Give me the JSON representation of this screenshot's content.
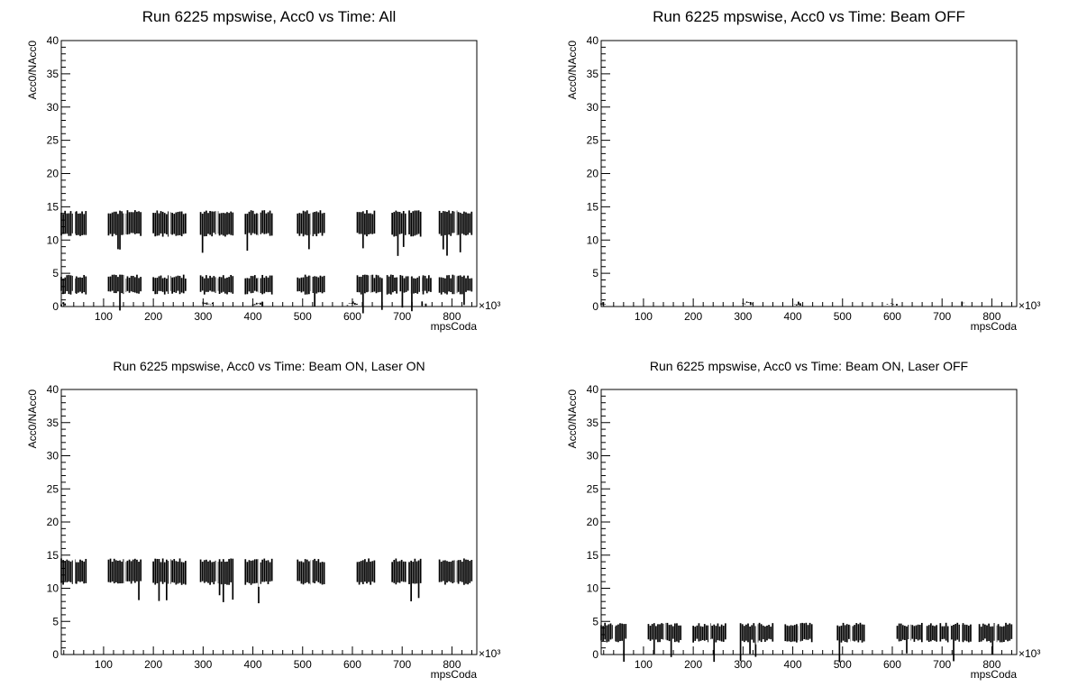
{
  "chart_data": [
    {
      "type": "scatter",
      "title": "Run 6225 mpswise, Acc0 vs Time: All",
      "xlabel": "mpsCoda",
      "ylabel": "Acc0/NAcc0",
      "x_multiplier": "×10³",
      "xlim": [
        15,
        850
      ],
      "ylim": [
        0,
        40
      ],
      "x_ticks": [
        "100",
        "200",
        "300",
        "400",
        "500",
        "600",
        "700",
        "800"
      ],
      "y_ticks": [
        "0",
        "5",
        "10",
        "15",
        "20",
        "25",
        "30",
        "35",
        "40"
      ],
      "series": [
        {
          "band": "beam-on-laser-on",
          "y_range": [
            10.5,
            14.5
          ],
          "x_segments": [
            [
              15,
              65
            ],
            [
              110,
              175
            ],
            [
              200,
              265
            ],
            [
              295,
              360
            ],
            [
              385,
              440
            ],
            [
              490,
              545
            ],
            [
              610,
              645
            ],
            [
              680,
              740
            ],
            [
              775,
              840
            ]
          ]
        },
        {
          "band": "beam-on-laser-off",
          "y_range": [
            1.8,
            4.8
          ],
          "x_segments": [
            [
              15,
              65
            ],
            [
              110,
              175
            ],
            [
              200,
              265
            ],
            [
              295,
              360
            ],
            [
              385,
              440
            ],
            [
              490,
              545
            ],
            [
              610,
              660
            ],
            [
              670,
              760
            ],
            [
              775,
              840
            ]
          ]
        },
        {
          "band": "beam-off",
          "y_range": [
            0,
            0.8
          ],
          "x_segments": [
            [
              15,
              25
            ],
            [
              300,
              320
            ],
            [
              400,
              420
            ],
            [
              590,
              610
            ],
            [
              740,
              750
            ]
          ]
        }
      ]
    },
    {
      "type": "scatter",
      "title": "Run 6225 mpswise, Acc0 vs Time: Beam OFF",
      "xlabel": "mpsCoda",
      "ylabel": "Acc0/NAcc0",
      "x_multiplier": "×10³",
      "xlim": [
        15,
        850
      ],
      "ylim": [
        0,
        40
      ],
      "x_ticks": [
        "100",
        "200",
        "300",
        "400",
        "500",
        "600",
        "700",
        "800"
      ],
      "y_ticks": [
        "0",
        "5",
        "10",
        "15",
        "20",
        "25",
        "30",
        "35",
        "40"
      ],
      "series": [
        {
          "band": "beam-off",
          "y_range": [
            0,
            0.8
          ],
          "x_segments": [
            [
              15,
              25
            ],
            [
              300,
              320
            ],
            [
              400,
              420
            ],
            [
              590,
              610
            ],
            [
              740,
              750
            ]
          ]
        }
      ]
    },
    {
      "type": "scatter",
      "title": "Run 6225 mpswise, Acc0 vs Time: Beam ON, Laser ON",
      "xlabel": "mpsCoda",
      "ylabel": "Acc0/NAcc0",
      "x_multiplier": "×10³",
      "xlim": [
        15,
        850
      ],
      "ylim": [
        0,
        40
      ],
      "x_ticks": [
        "100",
        "200",
        "300",
        "400",
        "500",
        "600",
        "700",
        "800"
      ],
      "y_ticks": [
        "0",
        "5",
        "10",
        "15",
        "20",
        "25",
        "30",
        "35",
        "40"
      ],
      "series": [
        {
          "band": "beam-on-laser-on",
          "y_range": [
            10.5,
            14.5
          ],
          "x_segments": [
            [
              15,
              65
            ],
            [
              110,
              175
            ],
            [
              200,
              265
            ],
            [
              295,
              360
            ],
            [
              385,
              440
            ],
            [
              490,
              545
            ],
            [
              610,
              645
            ],
            [
              680,
              740
            ],
            [
              775,
              840
            ]
          ]
        }
      ]
    },
    {
      "type": "scatter",
      "title": "Run 6225 mpswise, Acc0 vs Time: Beam ON, Laser OFF",
      "xlabel": "mpsCoda",
      "ylabel": "Acc0/NAcc0",
      "x_multiplier": "×10³",
      "xlim": [
        15,
        850
      ],
      "ylim": [
        0,
        40
      ],
      "x_ticks": [
        "100",
        "200",
        "300",
        "400",
        "500",
        "600",
        "700",
        "800"
      ],
      "y_ticks": [
        "0",
        "5",
        "10",
        "15",
        "20",
        "25",
        "30",
        "35",
        "40"
      ],
      "series": [
        {
          "band": "beam-on-laser-off",
          "y_range": [
            1.8,
            4.8
          ],
          "x_segments": [
            [
              15,
              65
            ],
            [
              110,
              175
            ],
            [
              200,
              265
            ],
            [
              295,
              360
            ],
            [
              385,
              440
            ],
            [
              490,
              545
            ],
            [
              610,
              660
            ],
            [
              670,
              760
            ],
            [
              775,
              840
            ]
          ]
        }
      ]
    }
  ]
}
